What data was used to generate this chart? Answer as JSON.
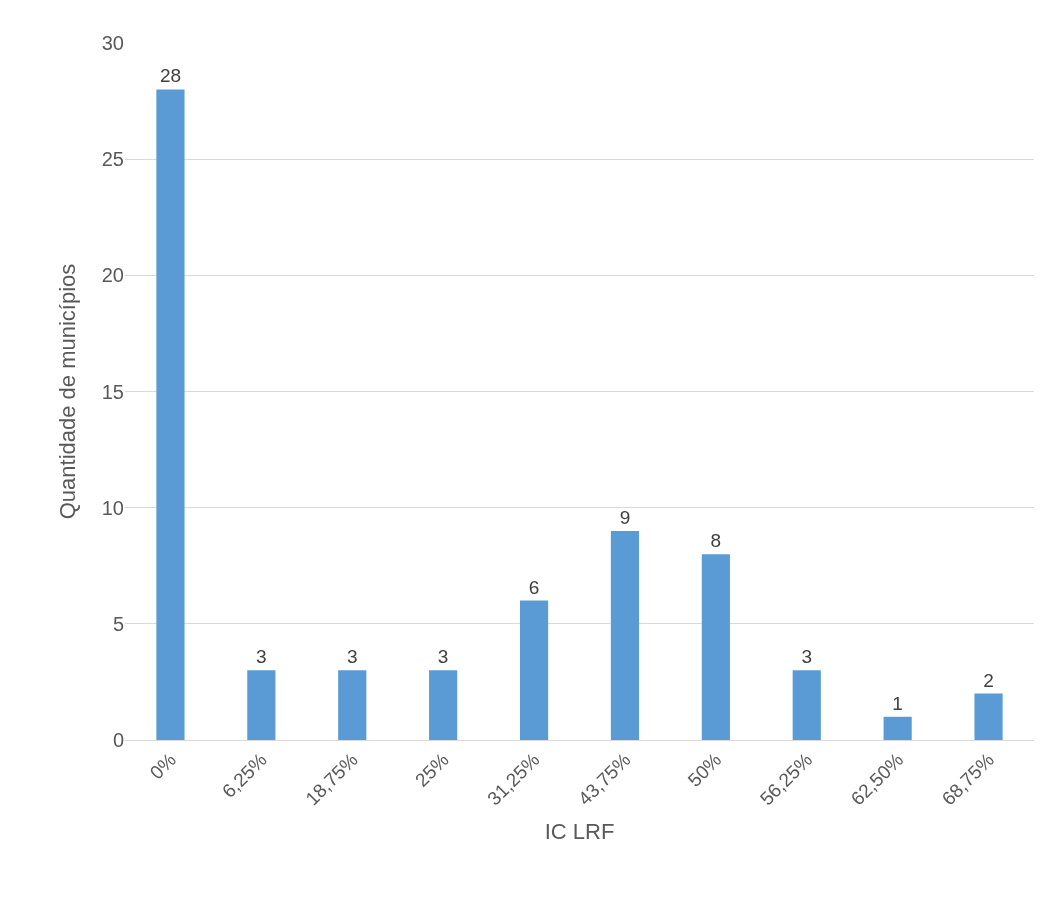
{
  "chart_data": {
    "type": "bar",
    "xlabel": "IC LRF",
    "ylabel": "Quantidade de municípios",
    "categories": [
      "0%",
      "6,25%",
      "18,75%",
      "25%",
      "31,25%",
      "43,75%",
      "50%",
      "56,25%",
      "62,50%",
      "68,75%"
    ],
    "values": [
      28,
      3,
      3,
      3,
      6,
      9,
      8,
      3,
      1,
      2
    ],
    "color": "#5b9bd5",
    "ylim": [
      0,
      30
    ],
    "yticks": [
      0,
      5,
      10,
      15,
      20,
      25,
      30
    ],
    "grid": "y",
    "data_labels": true
  }
}
